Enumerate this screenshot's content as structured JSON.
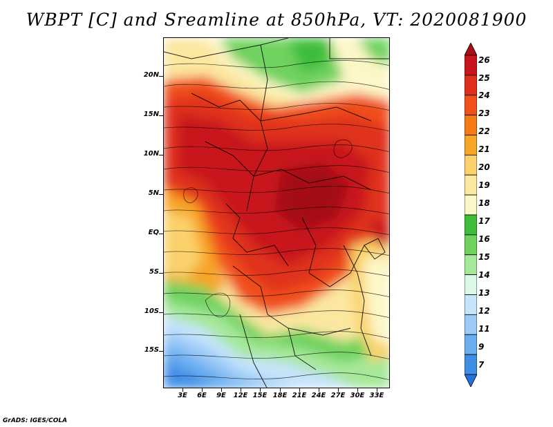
{
  "title": "WBPT [C] and Sreamline at 850hPa, VT: 2020081900",
  "lat_labels": [
    "20N",
    "15N",
    "10N",
    "5N",
    "EQ",
    "5S",
    "10S",
    "15S"
  ],
  "lon_labels": [
    "3E",
    "6E",
    "9E",
    "12E",
    "15E",
    "18E",
    "21E",
    "24E",
    "27E",
    "30E",
    "33E"
  ],
  "colorbar": {
    "labels": [
      "26",
      "25",
      "24",
      "23",
      "22",
      "21",
      "20",
      "19",
      "18",
      "17",
      "16",
      "15",
      "14",
      "13",
      "12",
      "11",
      "9",
      "7"
    ],
    "colors": [
      "#a50f15",
      "#c8141a",
      "#e0301c",
      "#f0501a",
      "#f47b16",
      "#f7a528",
      "#fad16a",
      "#fbe7a0",
      "#fdf7c8",
      "#3ebd3a",
      "#6fd25e",
      "#a6e89a",
      "#dcf7e6",
      "#c6e4fb",
      "#9ccbf7",
      "#6aaef0",
      "#3f8ee6",
      "#2670dd"
    ]
  },
  "credit": "GrADS: IGES/COLA"
}
